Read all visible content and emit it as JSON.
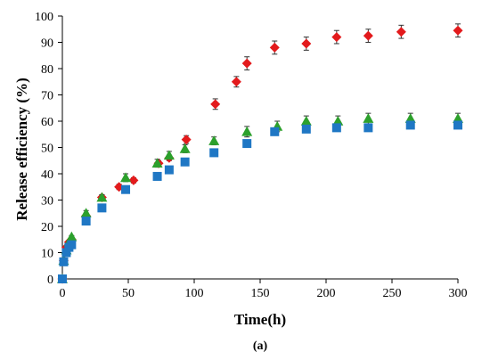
{
  "chart_data": {
    "type": "scatter",
    "title": "",
    "xlabel": "Time(h)",
    "ylabel": "Release efficiency (%)",
    "panel_label": "(a)",
    "xlim": [
      0,
      300
    ],
    "ylim": [
      0,
      100
    ],
    "xticks": [
      0,
      50,
      100,
      150,
      200,
      250,
      300
    ],
    "yticks": [
      0,
      10,
      20,
      30,
      40,
      50,
      60,
      70,
      80,
      90,
      100
    ],
    "grid": false,
    "legend": "none",
    "series": [
      {
        "marker": "diamond",
        "color": "#e31a1c",
        "points": [
          [
            0,
            0
          ],
          [
            1,
            7
          ],
          [
            3,
            12
          ],
          [
            5,
            14
          ],
          [
            7,
            15
          ],
          [
            18,
            24
          ],
          [
            30,
            31
          ],
          [
            43,
            35
          ],
          [
            54,
            37.5
          ],
          [
            73,
            44
          ],
          [
            81,
            46
          ],
          [
            94,
            53
          ],
          [
            116,
            66.5
          ],
          [
            132,
            75
          ],
          [
            140,
            82
          ],
          [
            161,
            88
          ],
          [
            185,
            89.5
          ],
          [
            208,
            92
          ],
          [
            232,
            92.5
          ],
          [
            257,
            94
          ],
          [
            300,
            94.5
          ]
        ],
        "errors": [
          0,
          0.5,
          0.5,
          0.5,
          0.5,
          1,
          1,
          1,
          1,
          1,
          1,
          1.5,
          2,
          2,
          2.5,
          2.5,
          2.5,
          2.5,
          2.5,
          2.5,
          2.5
        ]
      },
      {
        "marker": "triangle",
        "color": "#2ca02c",
        "points": [
          [
            0,
            0
          ],
          [
            1,
            7
          ],
          [
            3,
            11
          ],
          [
            5,
            14
          ],
          [
            7,
            16
          ],
          [
            18,
            25
          ],
          [
            30,
            31
          ],
          [
            48,
            38.5
          ],
          [
            72,
            44
          ],
          [
            81,
            47
          ],
          [
            93,
            49.5
          ],
          [
            115,
            52.5
          ],
          [
            140,
            56
          ],
          [
            163,
            58
          ],
          [
            185,
            60
          ],
          [
            209,
            60
          ],
          [
            232,
            61
          ],
          [
            264,
            61
          ],
          [
            300,
            61
          ]
        ],
        "errors": [
          0,
          0.5,
          0.5,
          0.5,
          0.5,
          1,
          1,
          1.5,
          1.5,
          1.5,
          1.5,
          1.5,
          2,
          2,
          2,
          2,
          2,
          2,
          2
        ]
      },
      {
        "marker": "square",
        "color": "#1f77c4",
        "points": [
          [
            0,
            0
          ],
          [
            1,
            6.5
          ],
          [
            3,
            10
          ],
          [
            5,
            12
          ],
          [
            7,
            13
          ],
          [
            18,
            22
          ],
          [
            30,
            27
          ],
          [
            48,
            34
          ],
          [
            72,
            39
          ],
          [
            81,
            41.5
          ],
          [
            93,
            44.5
          ],
          [
            115,
            48
          ],
          [
            140,
            51.5
          ],
          [
            161,
            56
          ],
          [
            185,
            57
          ],
          [
            208,
            57.5
          ],
          [
            232,
            57.5
          ],
          [
            264,
            58.5
          ],
          [
            300,
            58.5
          ]
        ],
        "errors": [
          0,
          0.5,
          0.5,
          0.5,
          0.5,
          0.5,
          0.5,
          0.5,
          0.5,
          0.5,
          0.5,
          1,
          1,
          1,
          1,
          1,
          1,
          1,
          1
        ]
      }
    ]
  }
}
